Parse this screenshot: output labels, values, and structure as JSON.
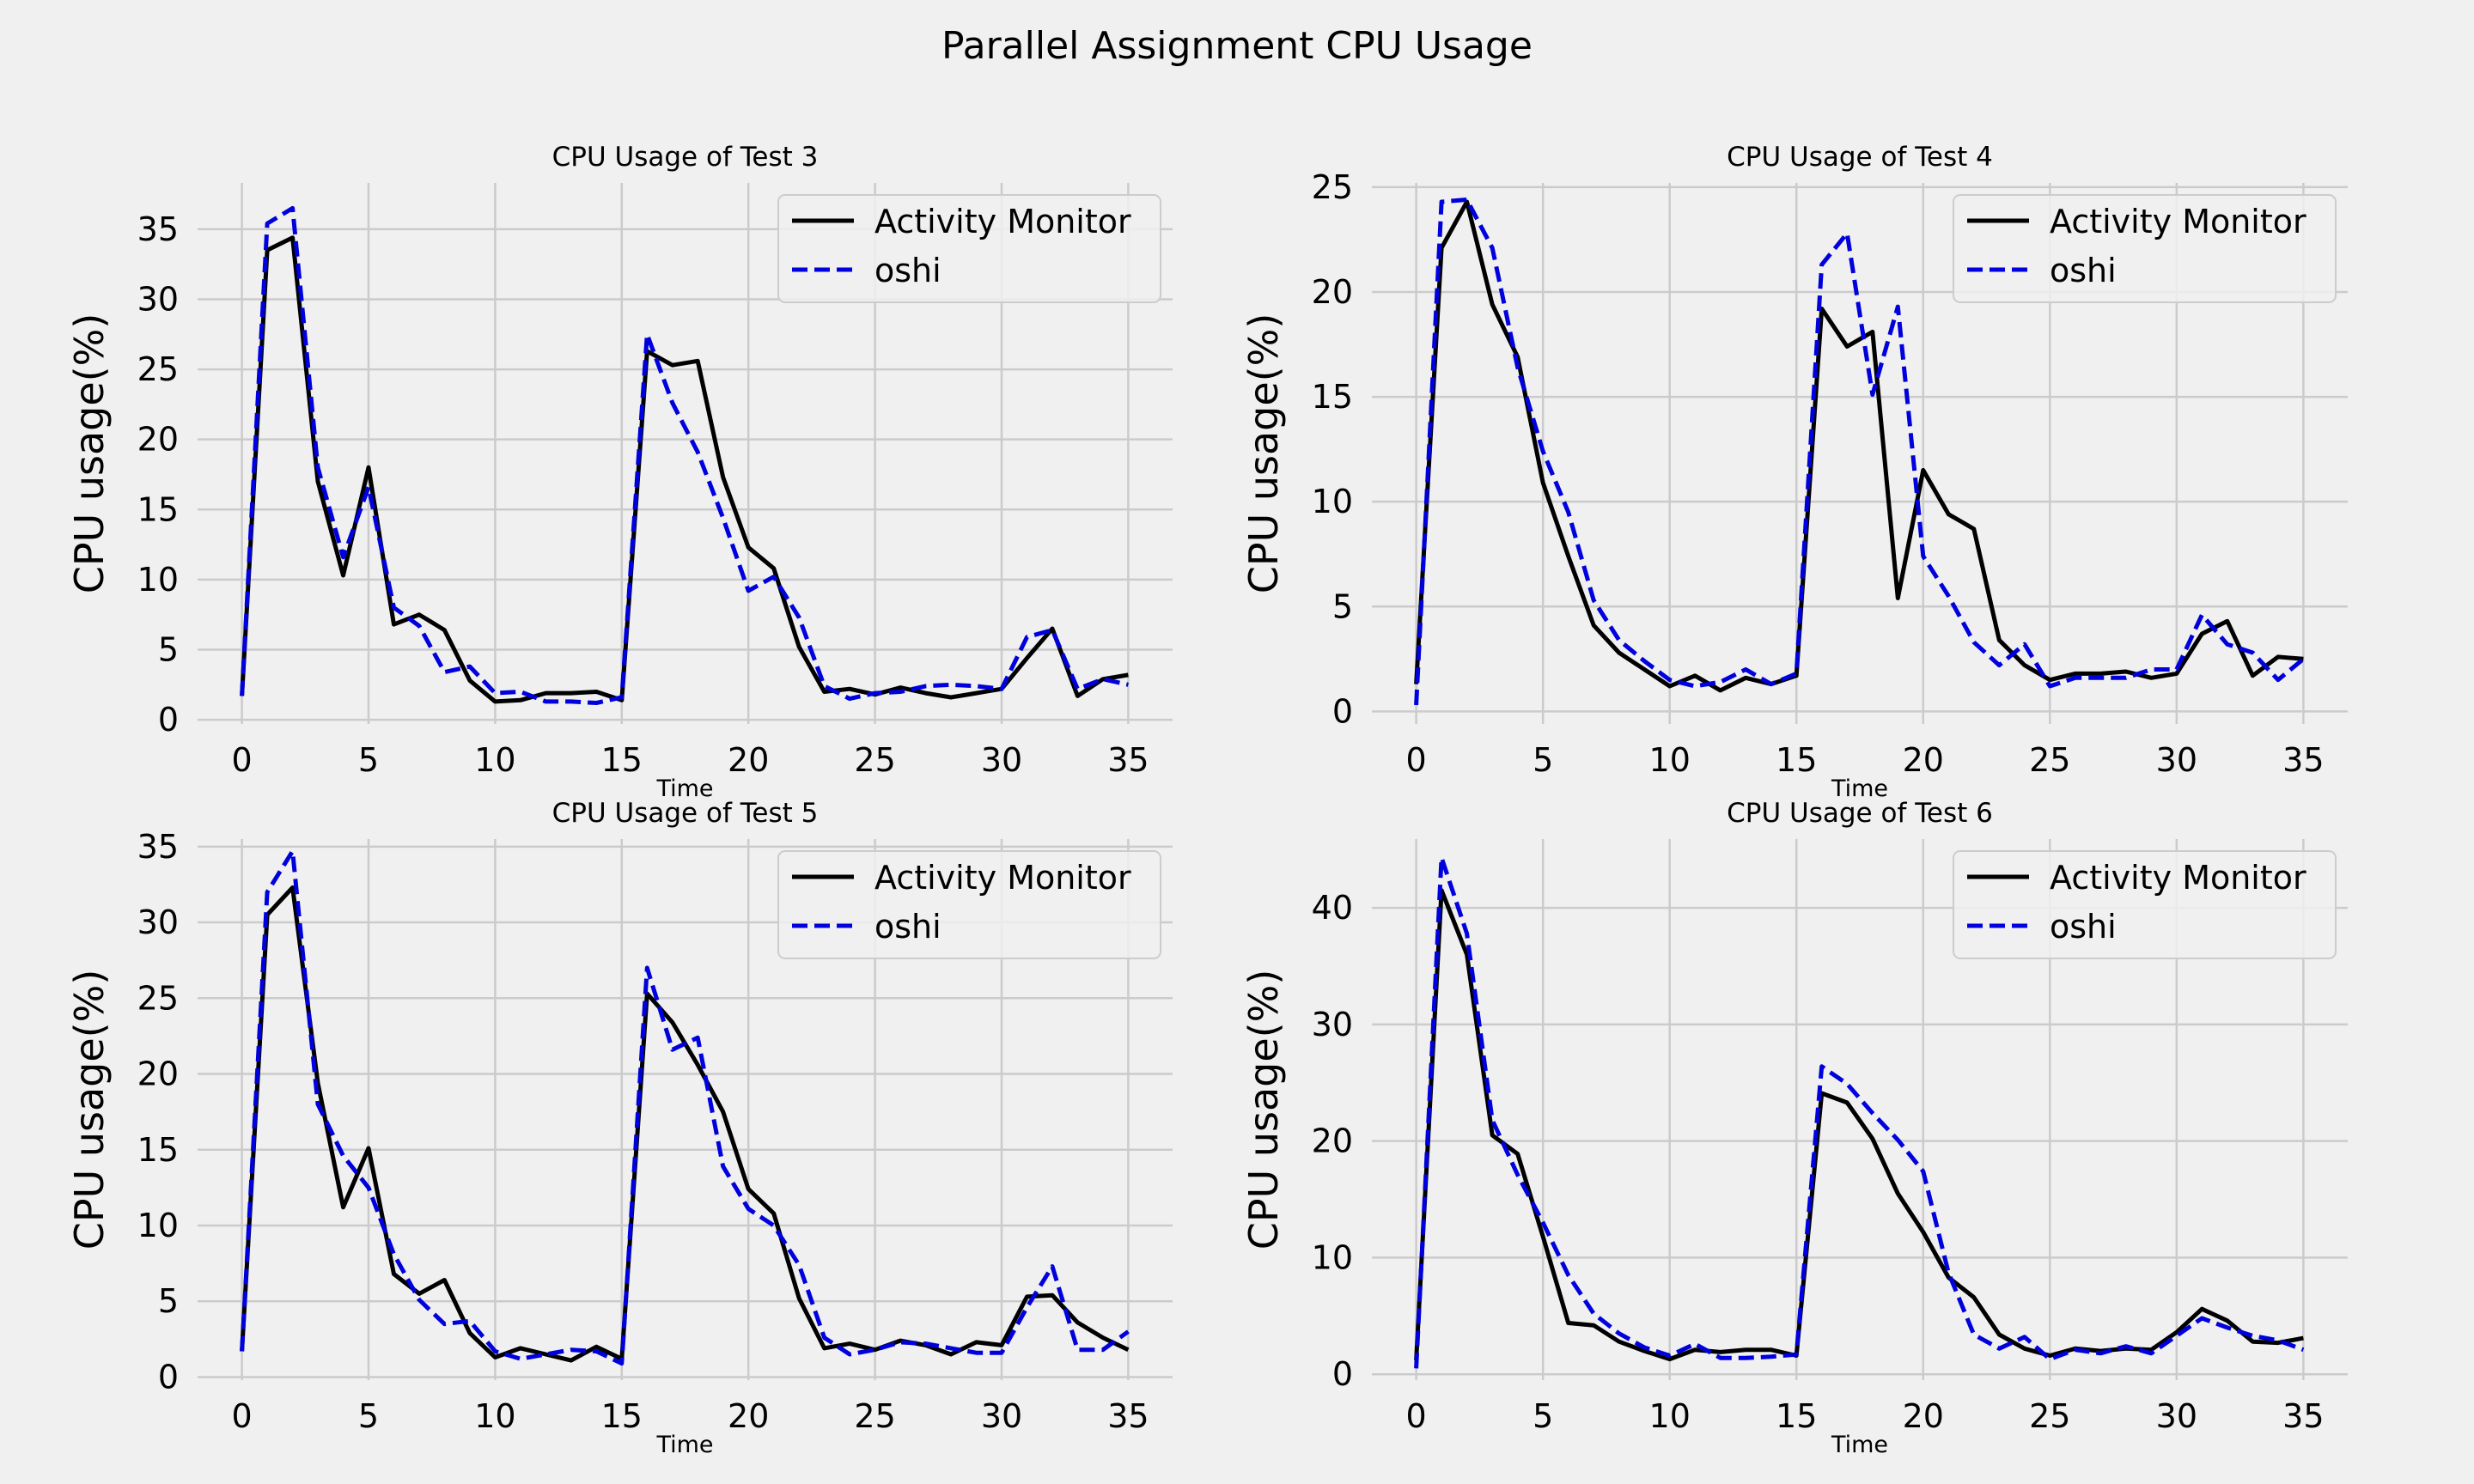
{
  "suptitle": "Parallel Assignment CPU Usage",
  "colors": {
    "background": "#f0f0f0",
    "grid": "#cbcbcb",
    "activity": "#000000",
    "oshi": "#0000dd"
  },
  "chart_data": [
    {
      "type": "line",
      "title": "CPU Usage of Test 3",
      "xlabel": "Time",
      "ylabel": "CPU usage(%)",
      "x": [
        0,
        1,
        2,
        3,
        4,
        5,
        6,
        7,
        8,
        9,
        10,
        11,
        12,
        13,
        14,
        15,
        16,
        17,
        18,
        19,
        20,
        21,
        22,
        23,
        24,
        25,
        26,
        27,
        28,
        29,
        30,
        31,
        32,
        33,
        34,
        35
      ],
      "xticks": [
        0,
        5,
        10,
        15,
        20,
        25,
        30,
        35
      ],
      "yticks": [
        0,
        5,
        10,
        15,
        20,
        25,
        30,
        35
      ],
      "xlim": [
        -1.75,
        36.75
      ],
      "ylim": [
        -0.3,
        38.3
      ],
      "legend": "top-right",
      "series": [
        {
          "name": "Activity Monitor",
          "style": "solid",
          "values": [
            1.7,
            33.5,
            34.4,
            17.0,
            10.3,
            18.0,
            6.8,
            7.5,
            6.4,
            2.8,
            1.3,
            1.4,
            1.9,
            1.9,
            2.0,
            1.4,
            26.3,
            25.3,
            25.6,
            17.3,
            12.3,
            10.8,
            5.2,
            2.0,
            2.2,
            1.8,
            2.3,
            1.9,
            1.6,
            1.9,
            2.2,
            4.4,
            6.5,
            1.7,
            2.9,
            3.2
          ]
        },
        {
          "name": "oshi",
          "style": "dashed",
          "values": [
            1.7,
            35.4,
            36.5,
            18.0,
            11.6,
            16.6,
            8.0,
            6.7,
            3.4,
            3.8,
            1.9,
            2.0,
            1.3,
            1.3,
            1.2,
            1.6,
            27.5,
            22.6,
            19.1,
            14.4,
            9.2,
            10.2,
            7.3,
            2.4,
            1.5,
            1.9,
            2.0,
            2.4,
            2.5,
            2.4,
            2.2,
            5.9,
            6.4,
            2.2,
            2.9,
            2.5
          ]
        }
      ]
    },
    {
      "type": "line",
      "title": "CPU Usage of Test 4",
      "xlabel": "Time",
      "ylabel": "CPU usage(%)",
      "x": [
        0,
        1,
        2,
        3,
        4,
        5,
        6,
        7,
        8,
        9,
        10,
        11,
        12,
        13,
        14,
        15,
        16,
        17,
        18,
        19,
        20,
        21,
        22,
        23,
        24,
        25,
        26,
        27,
        28,
        29,
        30,
        31,
        32,
        33,
        34,
        35
      ],
      "xticks": [
        0,
        5,
        10,
        15,
        20,
        25,
        30,
        35
      ],
      "yticks": [
        0,
        5,
        10,
        15,
        20,
        25
      ],
      "xlim": [
        -1.75,
        36.75
      ],
      "ylim": [
        -0.6,
        25.2
      ],
      "legend": "top-right",
      "series": [
        {
          "name": "Activity Monitor",
          "style": "solid",
          "values": [
            1.3,
            22.1,
            24.3,
            19.4,
            16.9,
            10.9,
            7.4,
            4.1,
            2.8,
            2.0,
            1.2,
            1.7,
            1.0,
            1.6,
            1.3,
            1.7,
            19.2,
            17.4,
            18.1,
            5.4,
            11.5,
            9.4,
            8.7,
            3.4,
            2.2,
            1.5,
            1.8,
            1.8,
            1.9,
            1.6,
            1.8,
            3.7,
            4.3,
            1.7,
            2.6,
            2.5
          ]
        },
        {
          "name": "oshi",
          "style": "dashed",
          "values": [
            0.3,
            24.3,
            24.4,
            22.1,
            16.4,
            12.4,
            9.5,
            5.3,
            3.4,
            2.4,
            1.5,
            1.2,
            1.4,
            2.0,
            1.3,
            1.8,
            21.3,
            22.8,
            15.1,
            19.3,
            7.4,
            5.5,
            3.3,
            2.2,
            3.2,
            1.2,
            1.6,
            1.6,
            1.6,
            2.0,
            2.0,
            4.6,
            3.2,
            2.8,
            1.5,
            2.5
          ]
        }
      ]
    },
    {
      "type": "line",
      "title": "CPU Usage of Test 5",
      "xlabel": "Time",
      "ylabel": "CPU usage(%)",
      "x": [
        0,
        1,
        2,
        3,
        4,
        5,
        6,
        7,
        8,
        9,
        10,
        11,
        12,
        13,
        14,
        15,
        16,
        17,
        18,
        19,
        20,
        21,
        22,
        23,
        24,
        25,
        26,
        27,
        28,
        29,
        30,
        31,
        32,
        33,
        34,
        35
      ],
      "xticks": [
        0,
        5,
        10,
        15,
        20,
        25,
        30,
        35
      ],
      "yticks": [
        0,
        5,
        10,
        15,
        20,
        25,
        30,
        35
      ],
      "xlim": [
        -1.75,
        36.75
      ],
      "ylim": [
        -0.2,
        35.5
      ],
      "legend": "top-right",
      "series": [
        {
          "name": "Activity Monitor",
          "style": "solid",
          "values": [
            1.7,
            30.5,
            32.3,
            19.4,
            11.2,
            15.1,
            6.8,
            5.5,
            6.4,
            2.9,
            1.3,
            1.9,
            1.5,
            1.1,
            2.0,
            1.2,
            25.3,
            23.4,
            20.6,
            17.5,
            12.4,
            10.8,
            5.2,
            1.9,
            2.2,
            1.8,
            2.4,
            2.1,
            1.5,
            2.3,
            2.1,
            5.3,
            5.4,
            3.6,
            2.6,
            1.8
          ]
        },
        {
          "name": "oshi",
          "style": "dashed",
          "values": [
            1.7,
            32.0,
            34.7,
            18.0,
            14.6,
            12.5,
            8.1,
            5.1,
            3.5,
            3.7,
            1.7,
            1.2,
            1.5,
            1.8,
            1.7,
            0.9,
            27.0,
            21.6,
            22.4,
            13.9,
            11.1,
            10.0,
            7.4,
            2.6,
            1.5,
            1.8,
            2.3,
            2.2,
            1.9,
            1.6,
            1.6,
            4.6,
            7.3,
            1.8,
            1.8,
            3.0
          ]
        }
      ]
    },
    {
      "type": "line",
      "title": "CPU Usage of Test 6",
      "xlabel": "Time",
      "ylabel": "CPU usage(%)",
      "x": [
        0,
        1,
        2,
        3,
        4,
        5,
        6,
        7,
        8,
        9,
        10,
        11,
        12,
        13,
        14,
        15,
        16,
        17,
        18,
        19,
        20,
        21,
        22,
        23,
        24,
        25,
        26,
        27,
        28,
        29,
        30,
        31,
        32,
        33,
        34,
        35
      ],
      "xticks": [
        0,
        5,
        10,
        15,
        20,
        25,
        30,
        35
      ],
      "yticks": [
        0,
        10,
        20,
        30,
        40
      ],
      "xlim": [
        -1.75,
        36.75
      ],
      "ylim": [
        -0.5,
        45.9
      ],
      "legend": "top-right",
      "series": [
        {
          "name": "Activity Monitor",
          "style": "solid",
          "values": [
            1.2,
            41.5,
            36.0,
            20.5,
            18.9,
            11.8,
            4.4,
            4.2,
            2.8,
            2.0,
            1.3,
            2.1,
            1.9,
            2.1,
            2.1,
            1.6,
            24.1,
            23.3,
            20.2,
            15.5,
            12.2,
            8.3,
            6.6,
            3.4,
            2.2,
            1.6,
            2.2,
            2.0,
            2.2,
            2.1,
            3.6,
            5.6,
            4.6,
            2.8,
            2.7,
            3.1
          ]
        },
        {
          "name": "oshi",
          "style": "dashed",
          "values": [
            0.5,
            44.3,
            37.8,
            21.8,
            17.1,
            13.0,
            8.5,
            5.2,
            3.5,
            2.3,
            1.6,
            2.6,
            1.4,
            1.4,
            1.5,
            1.7,
            26.4,
            24.9,
            22.4,
            20.1,
            17.4,
            8.7,
            3.4,
            2.2,
            3.2,
            1.3,
            2.1,
            1.8,
            2.4,
            1.8,
            3.3,
            4.8,
            4.0,
            3.3,
            2.9,
            2.1
          ]
        }
      ]
    }
  ]
}
